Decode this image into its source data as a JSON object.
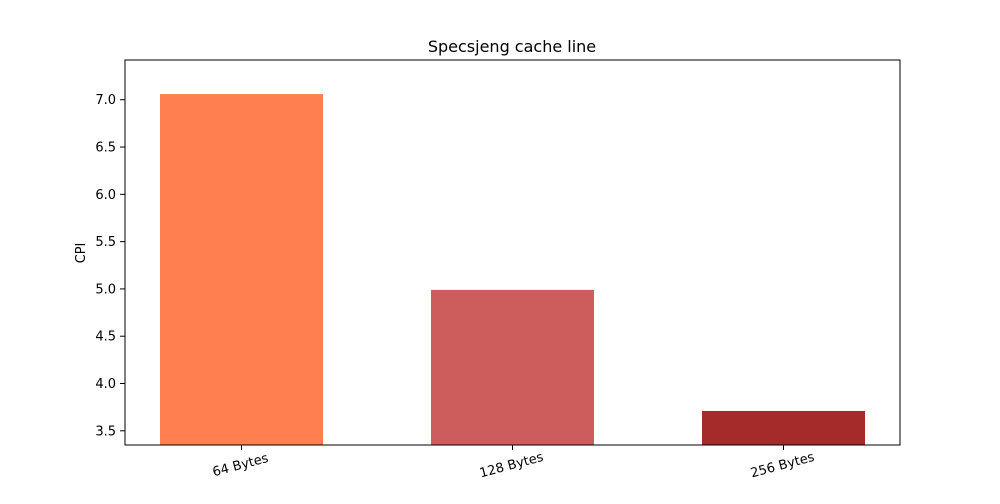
{
  "chart_data": {
    "type": "bar",
    "title": "Specsjeng cache line",
    "xlabel": "",
    "ylabel": "CPI",
    "categories": [
      "64 Bytes",
      "128 Bytes",
      "256 Bytes"
    ],
    "values": [
      7.06,
      4.99,
      3.71
    ],
    "colors": [
      "#ff7f50",
      "#cd5c5c",
      "#a52a2a"
    ],
    "ylim": [
      3.35,
      7.42
    ],
    "yticks": [
      3.5,
      4.0,
      4.5,
      5.0,
      5.5,
      6.0,
      6.5,
      7.0
    ],
    "ytick_labels": [
      "3.5",
      "4.0",
      "4.5",
      "5.0",
      "5.5",
      "6.0",
      "6.5",
      "7.0"
    ],
    "grid": false,
    "legend": "none"
  }
}
